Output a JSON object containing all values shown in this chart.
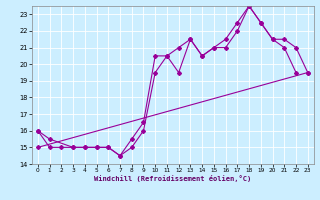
{
  "xlabel": "Windchill (Refroidissement éolien,°C)",
  "bg_color": "#cceeff",
  "line_color": "#990099",
  "xlim": [
    -0.5,
    23.5
  ],
  "ylim": [
    14,
    23.5
  ],
  "xticks": [
    0,
    1,
    2,
    3,
    4,
    5,
    6,
    7,
    8,
    9,
    10,
    11,
    12,
    13,
    14,
    15,
    16,
    17,
    18,
    19,
    20,
    21,
    22,
    23
  ],
  "yticks": [
    14,
    15,
    16,
    17,
    18,
    19,
    20,
    21,
    22,
    23
  ],
  "line1_x": [
    0,
    1,
    2,
    3,
    4,
    5,
    6,
    7,
    8,
    9,
    10,
    11,
    12,
    13,
    14,
    15,
    16,
    17,
    18,
    19,
    20,
    21,
    22
  ],
  "line1_y": [
    16,
    15,
    15,
    15,
    15,
    15,
    15,
    14.5,
    15,
    16,
    19.5,
    20.5,
    19.5,
    21.5,
    20.5,
    21,
    21,
    22,
    23.5,
    22.5,
    21.5,
    21,
    19.5
  ],
  "line2_x": [
    0,
    1,
    3,
    4,
    5,
    6,
    7,
    8,
    9,
    10,
    11,
    12,
    13,
    14,
    15,
    16,
    17,
    18,
    19,
    20,
    21,
    22,
    23
  ],
  "line2_y": [
    16,
    15.5,
    15,
    15,
    15,
    15,
    14.5,
    15.5,
    16.5,
    20.5,
    20.5,
    21,
    21.5,
    20.5,
    21,
    21.5,
    22.5,
    23.5,
    22.5,
    21.5,
    21.5,
    21,
    19.5
  ],
  "line3_x": [
    0,
    23
  ],
  "line3_y": [
    15.0,
    19.5
  ]
}
